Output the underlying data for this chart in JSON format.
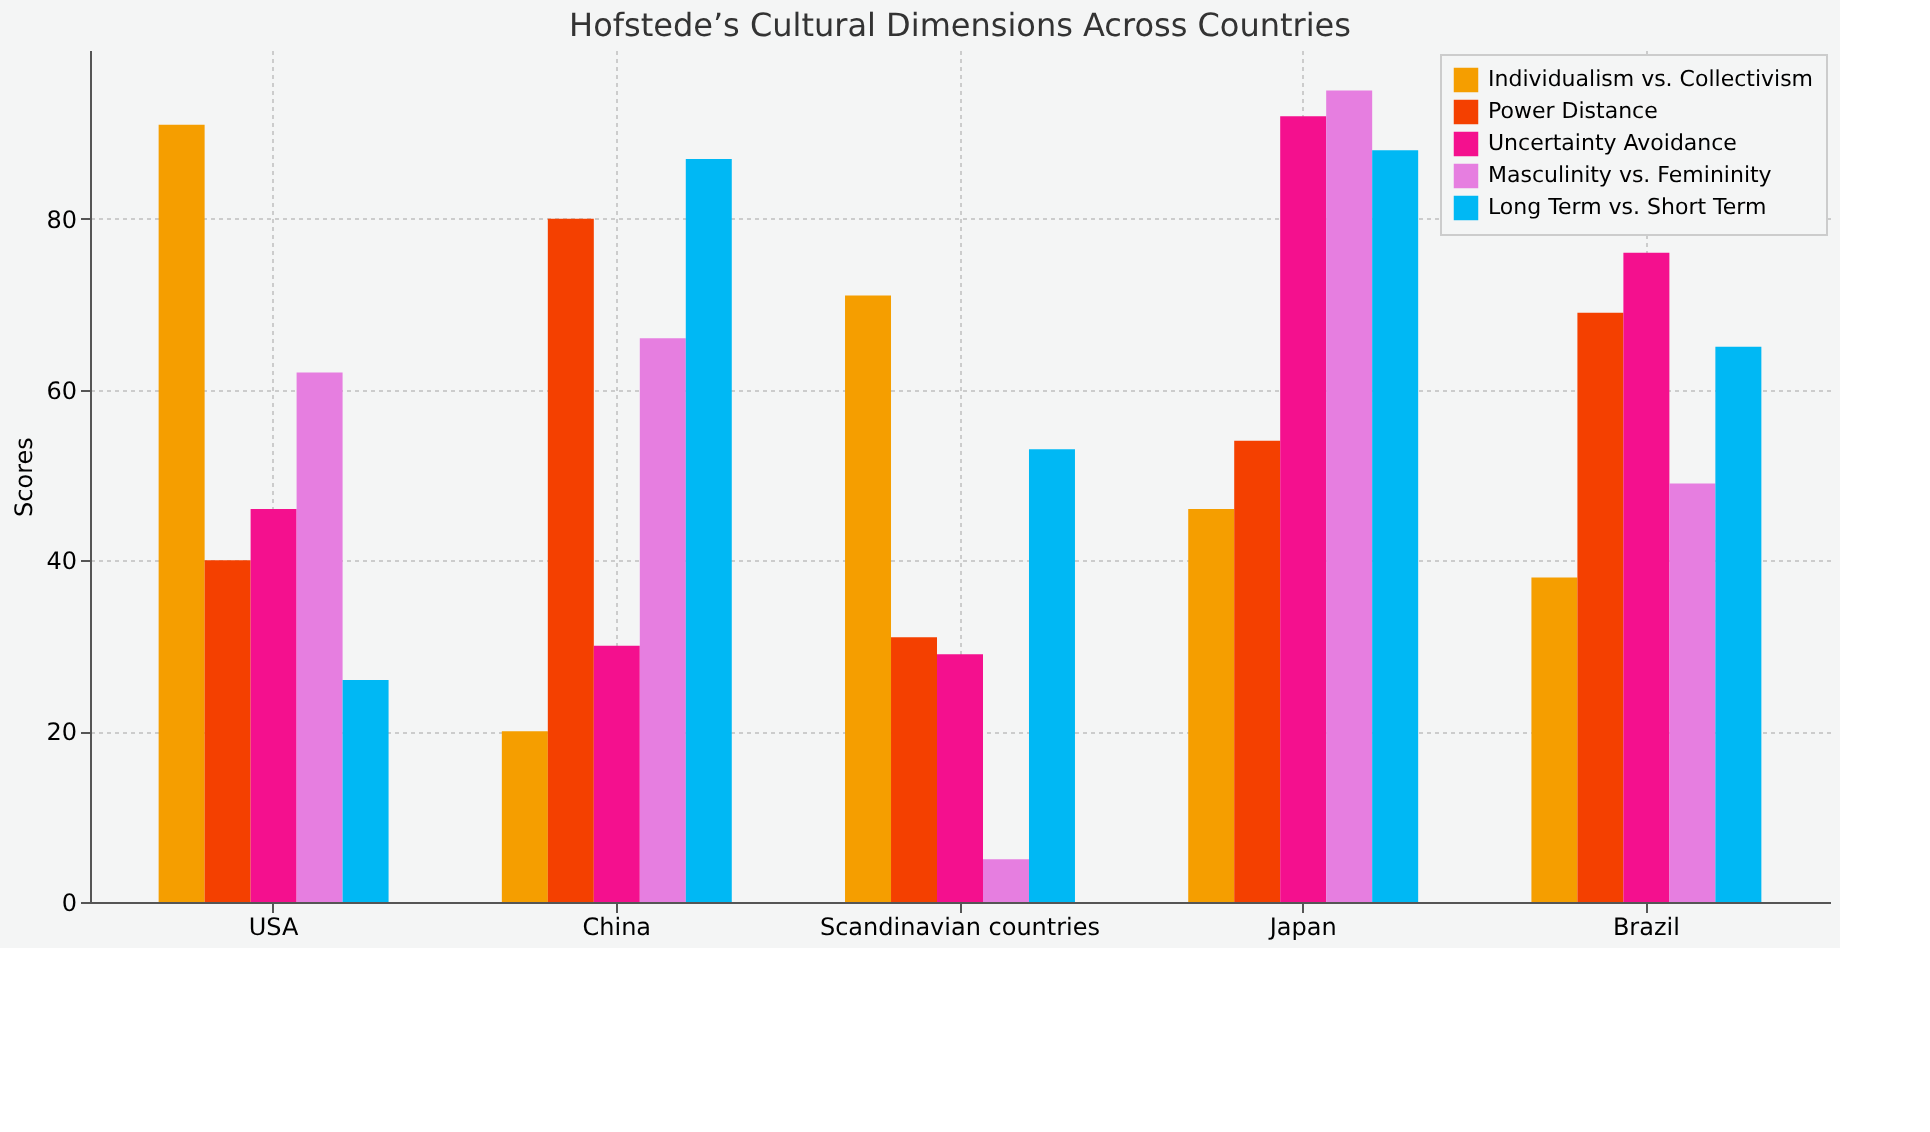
{
  "chart_data": {
    "type": "bar",
    "title": "Hofstede’s Cultural Dimensions Across Countries",
    "ylabel": "Scores",
    "categories": [
      "USA",
      "China",
      "Scandinavian countries",
      "Japan",
      "Brazil"
    ],
    "series": [
      {
        "name": "Individualism vs. Collectivism",
        "color": "#f59e00",
        "values": [
          91,
          20,
          71,
          46,
          38
        ]
      },
      {
        "name": "Power Distance",
        "color": "#f44000",
        "values": [
          40,
          80,
          31,
          54,
          69
        ]
      },
      {
        "name": "Uncertainty Avoidance",
        "color": "#f4108e",
        "values": [
          46,
          30,
          29,
          92,
          76
        ]
      },
      {
        "name": "Masculinity vs. Femininity",
        "color": "#e67ee0",
        "values": [
          62,
          66,
          5,
          95,
          49
        ]
      },
      {
        "name": "Long Term vs. Short Term",
        "color": "#00b8f4",
        "values": [
          26,
          87,
          53,
          88,
          65
        ]
      }
    ],
    "ylim": [
      0,
      99.75
    ],
    "yticks": [
      0,
      20,
      40,
      60,
      80
    ],
    "grid": true,
    "legend": "top right"
  }
}
